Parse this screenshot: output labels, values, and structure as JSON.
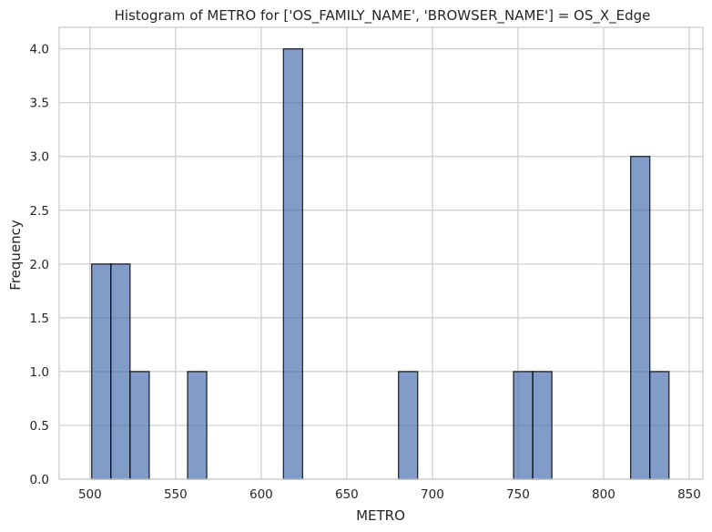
{
  "chart_data": {
    "type": "bar",
    "title": "Histogram of METRO for ['OS_FAMILY_NAME', 'BROWSER_NAME'] = OS_X_Edge",
    "xlabel": "METRO",
    "ylabel": "Frequency",
    "xlim": [
      482,
      858
    ],
    "ylim": [
      0,
      4.2
    ],
    "x_ticks": [
      500,
      550,
      600,
      650,
      700,
      750,
      800,
      850
    ],
    "y_ticks": [
      0.0,
      0.5,
      1.0,
      1.5,
      2.0,
      2.5,
      3.0,
      3.5,
      4.0
    ],
    "bin_width": 11.2,
    "bins": [
      {
        "start": 501.0,
        "count": 2
      },
      {
        "start": 512.2,
        "count": 2
      },
      {
        "start": 523.4,
        "count": 1
      },
      {
        "start": 557.0,
        "count": 1
      },
      {
        "start": 613.0,
        "count": 4
      },
      {
        "start": 680.2,
        "count": 1
      },
      {
        "start": 747.4,
        "count": 1
      },
      {
        "start": 758.6,
        "count": 1
      },
      {
        "start": 815.8,
        "count": 3
      },
      {
        "start": 827.0,
        "count": 1
      }
    ],
    "grid": true,
    "colors": {
      "bar_fill": "#4c72b0",
      "bar_edge": "#000000",
      "grid": "#cccccc",
      "axes_edge": "#cccccc"
    }
  }
}
